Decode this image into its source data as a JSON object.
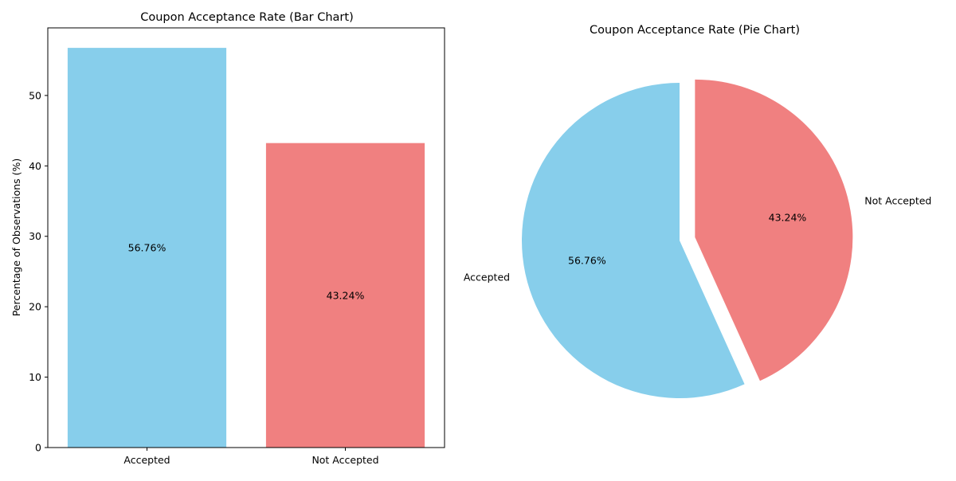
{
  "chart_data": [
    {
      "type": "bar",
      "title": "Coupon Acceptance Rate (Bar Chart)",
      "xlabel": "",
      "ylabel": "Percentage of Observations (%)",
      "categories": [
        "Accepted",
        "Not Accepted"
      ],
      "values": [
        56.76,
        43.24
      ],
      "value_labels": [
        "56.76%",
        "43.24%"
      ],
      "colors": [
        "#87ceeb",
        "#f08080"
      ],
      "ylim": [
        0,
        59.6
      ],
      "yticks": [
        0,
        10,
        20,
        30,
        40,
        50
      ],
      "grid": false
    },
    {
      "type": "pie",
      "title": "Coupon Acceptance Rate (Pie Chart)",
      "labels": [
        "Accepted",
        "Not Accepted"
      ],
      "values": [
        56.76,
        43.24
      ],
      "value_labels": [
        "56.76%",
        "43.24%"
      ],
      "colors": [
        "#87ceeb",
        "#f08080"
      ],
      "explode": [
        0,
        0.1
      ],
      "start_angle_deg": 90,
      "counterclockwise": true
    }
  ]
}
